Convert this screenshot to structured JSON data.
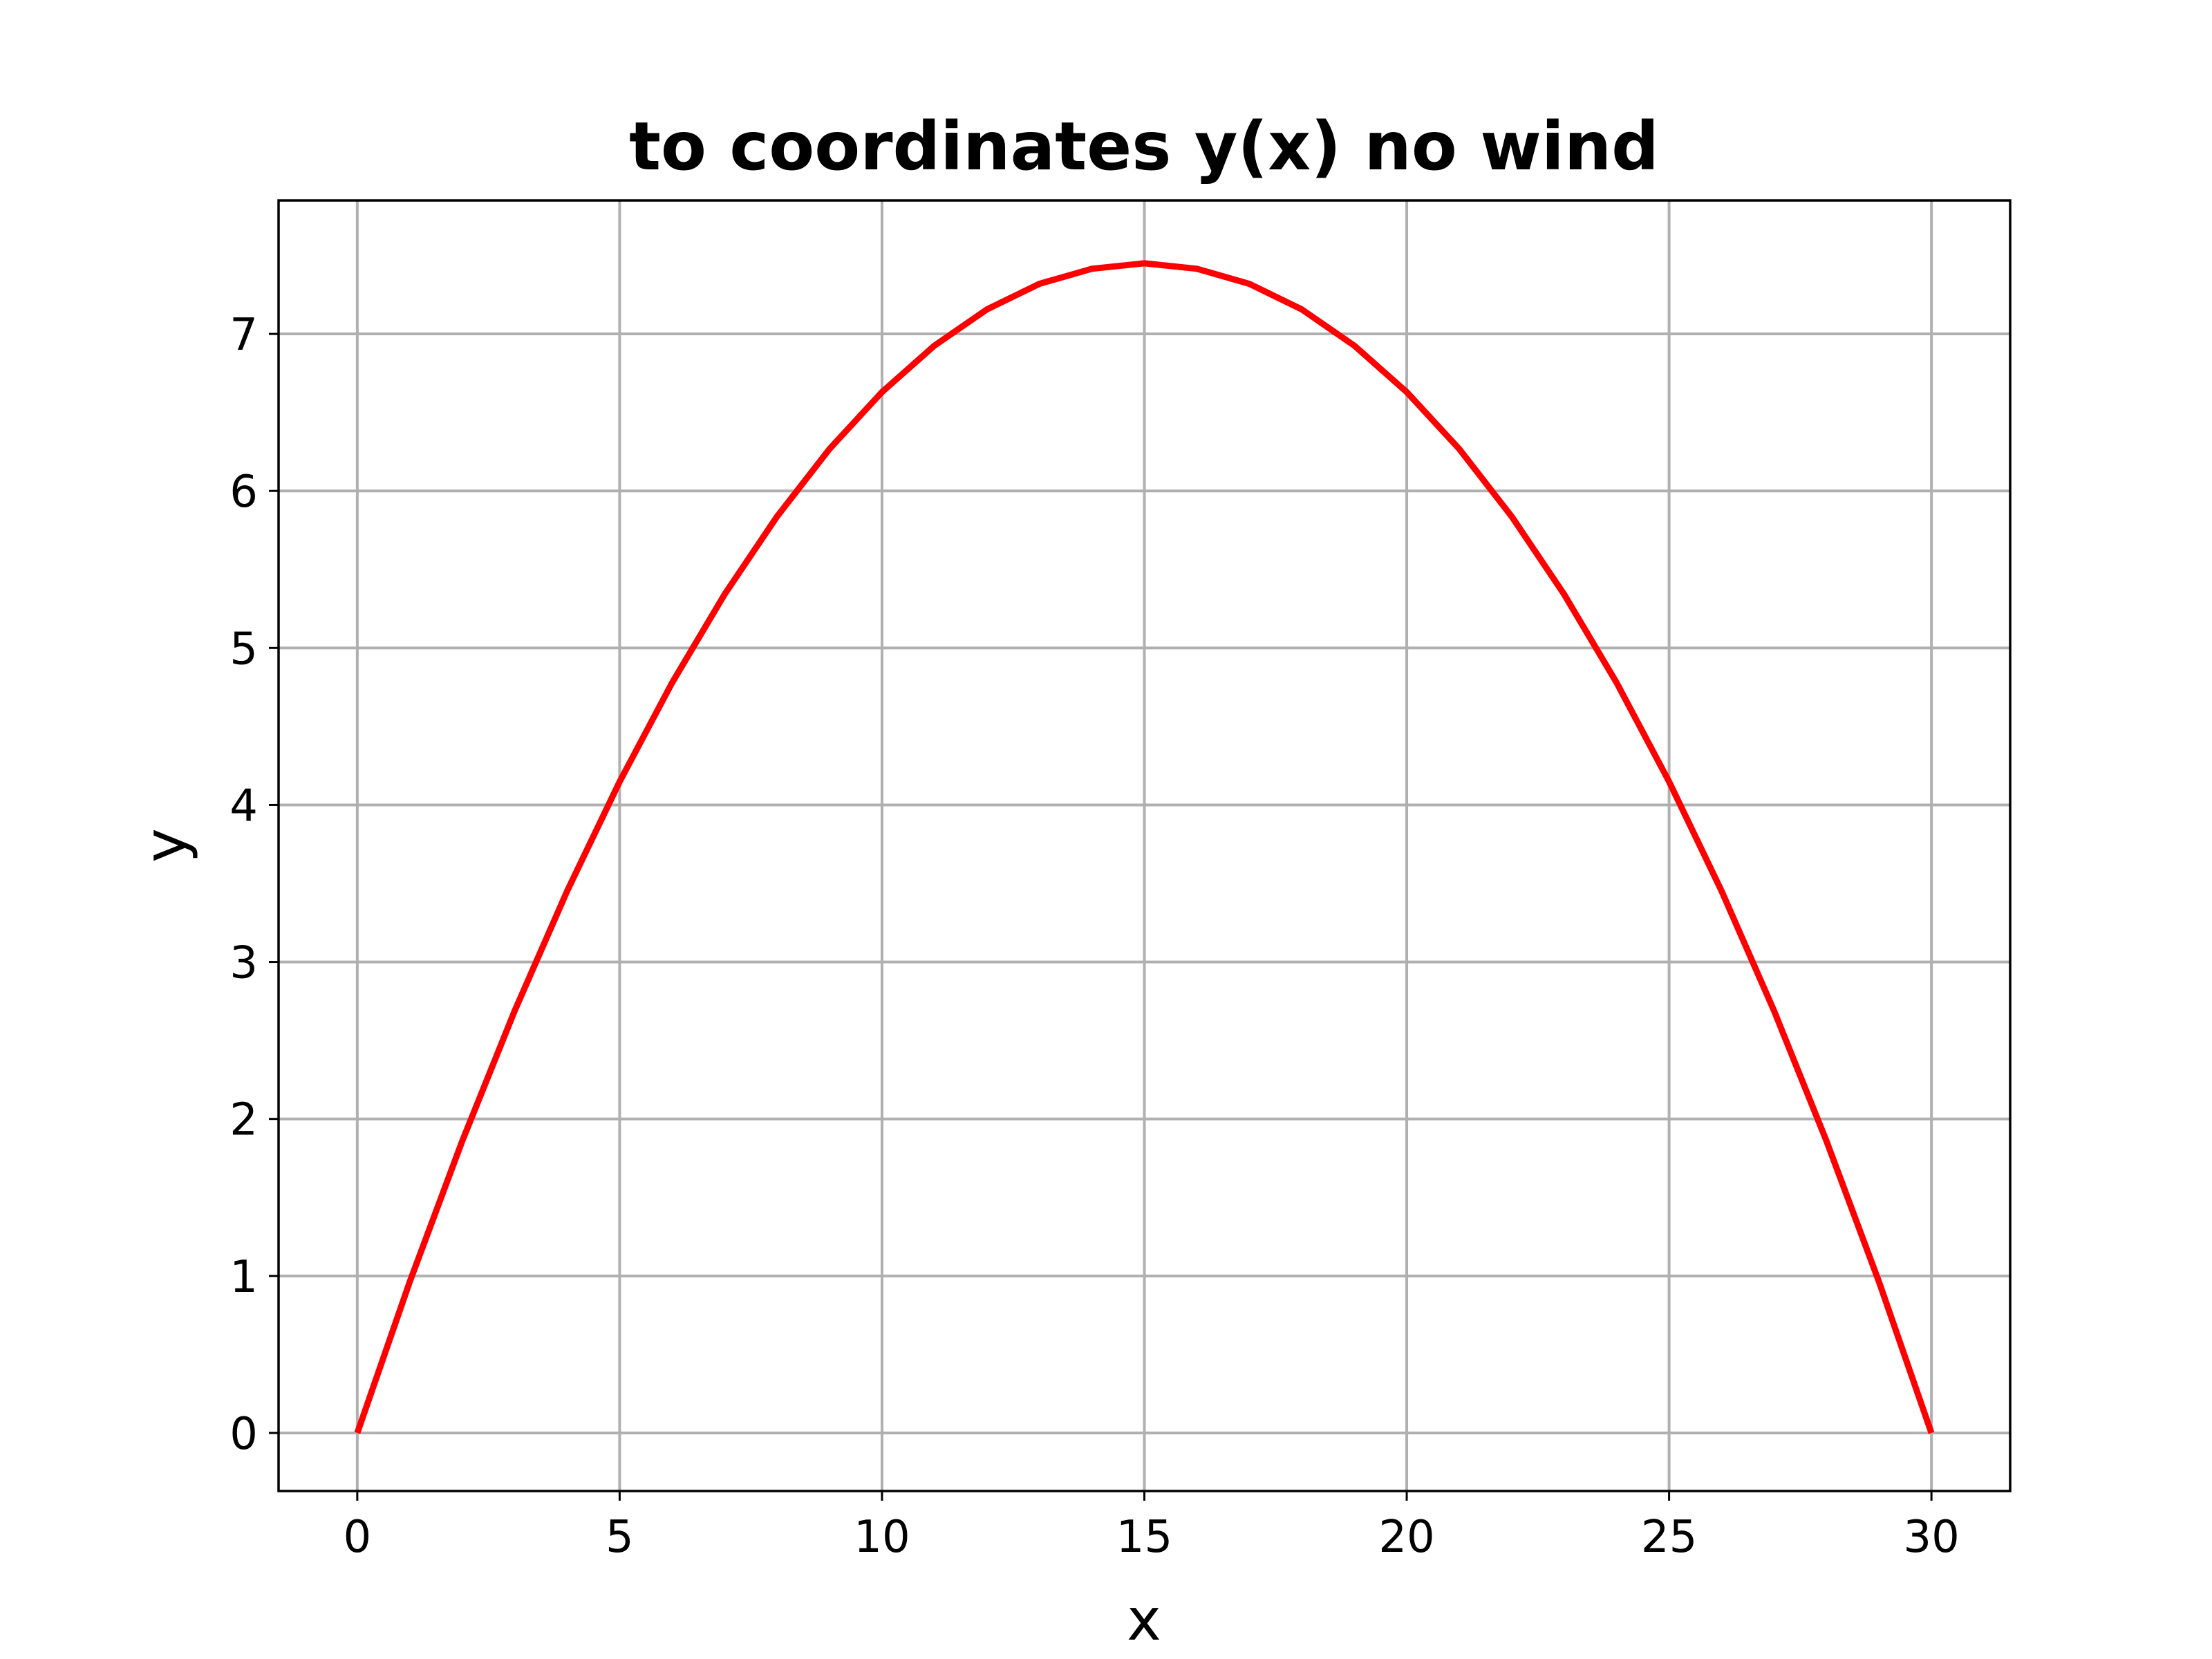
{
  "chart_data": {
    "type": "line",
    "title": "to coordinates y(x) no wind",
    "xlabel": "x",
    "ylabel": "y",
    "xlim": [
      -1.5,
      31.5
    ],
    "ylim": [
      -0.37,
      7.85
    ],
    "xticks": [
      0,
      5,
      10,
      15,
      20,
      25,
      30
    ],
    "yticks": [
      0,
      1,
      2,
      3,
      4,
      5,
      6,
      7
    ],
    "grid": true,
    "series": [
      {
        "color": "#ff0000",
        "x": [
          0,
          1,
          2,
          3,
          4,
          5,
          6,
          7,
          8,
          9,
          10,
          11,
          12,
          13,
          14,
          15,
          16,
          17,
          18,
          19,
          20,
          21,
          22,
          23,
          24,
          25,
          26,
          27,
          28,
          29,
          30
        ],
        "y": [
          0,
          0.963,
          1.859,
          2.689,
          3.452,
          4.148,
          4.778,
          5.341,
          5.837,
          6.267,
          6.63,
          6.926,
          7.156,
          7.319,
          7.415,
          7.45,
          7.415,
          7.319,
          7.156,
          6.926,
          6.63,
          6.267,
          5.837,
          5.341,
          4.778,
          4.148,
          3.452,
          2.689,
          1.859,
          0.963,
          0
        ]
      }
    ]
  }
}
